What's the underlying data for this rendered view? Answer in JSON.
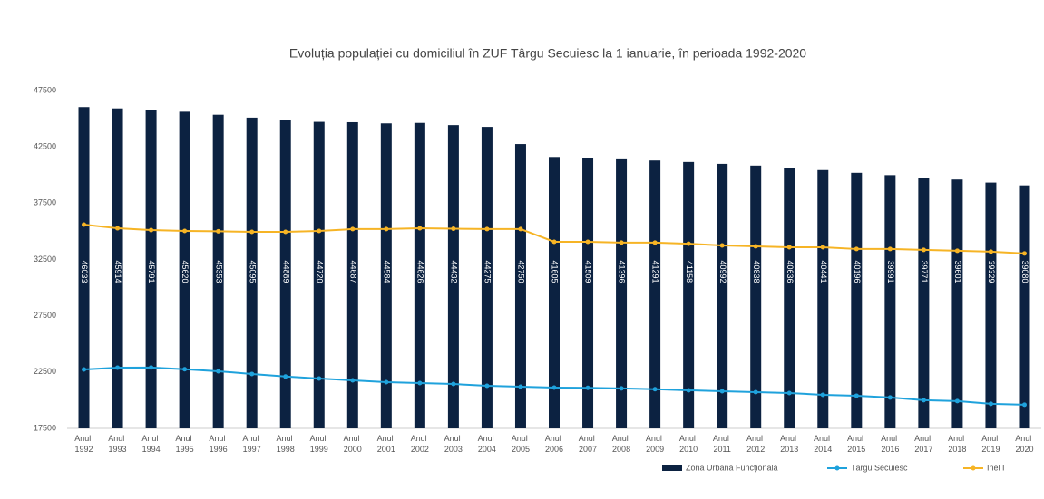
{
  "chart_data": {
    "type": "bar",
    "title": "Evoluția populației cu domiciliul în ZUF Târgu Secuiesc la 1 ianuarie, în perioada 1992-2020",
    "categories": [
      "Anul 1992",
      "Anul 1993",
      "Anul 1994",
      "Anul 1995",
      "Anul 1996",
      "Anul 1997",
      "Anul 1998",
      "Anul 1999",
      "Anul 2000",
      "Anul 2001",
      "Anul 2002",
      "Anul 2003",
      "Anul 2004",
      "Anul 2005",
      "Anul 2006",
      "Anul 2007",
      "Anul 2008",
      "Anul 2009",
      "Anul 2010",
      "Anul 2011",
      "Anul 2012",
      "Anul 2013",
      "Anul 2014",
      "Anul 2015",
      "Anul 2016",
      "Anul 2017",
      "Anul 2018",
      "Anul 2019",
      "Anul 2020"
    ],
    "series": [
      {
        "name": "Zona Urbană Funcțională",
        "type": "bar",
        "color": "#0c2241",
        "data_labels": true,
        "values": [
          46033,
          45914,
          45791,
          45620,
          45353,
          45095,
          44889,
          44720,
          44687,
          44584,
          44626,
          44432,
          44275,
          42750,
          41605,
          41509,
          41396,
          41291,
          41158,
          40992,
          40838,
          40636,
          40441,
          40196,
          39991,
          39771,
          39601,
          39329,
          39080
        ]
      },
      {
        "name": "Târgu Secuiesc",
        "type": "line",
        "color": "#1fa2dc",
        "values": [
          22730,
          22890,
          22900,
          22750,
          22570,
          22330,
          22100,
          21920,
          21760,
          21600,
          21520,
          21440,
          21280,
          21200,
          21120,
          21100,
          21050,
          20980,
          20880,
          20800,
          20720,
          20640,
          20480,
          20400,
          20240,
          20000,
          19920,
          19680,
          19600
        ]
      },
      {
        "name": "Inel I",
        "type": "line",
        "color": "#f6b425",
        "values": [
          35600,
          35270,
          35110,
          35030,
          35000,
          34950,
          34950,
          35030,
          35200,
          35200,
          35270,
          35230,
          35200,
          35200,
          34070,
          34070,
          34000,
          34000,
          33900,
          33750,
          33670,
          33590,
          33590,
          33430,
          33430,
          33350,
          33270,
          33190,
          33030
        ]
      }
    ],
    "ylim": [
      17500,
      47500
    ],
    "yticks": [
      17500,
      22500,
      27500,
      32500,
      37500,
      42500,
      47500
    ],
    "grid": false,
    "legend": "bottom-right"
  }
}
